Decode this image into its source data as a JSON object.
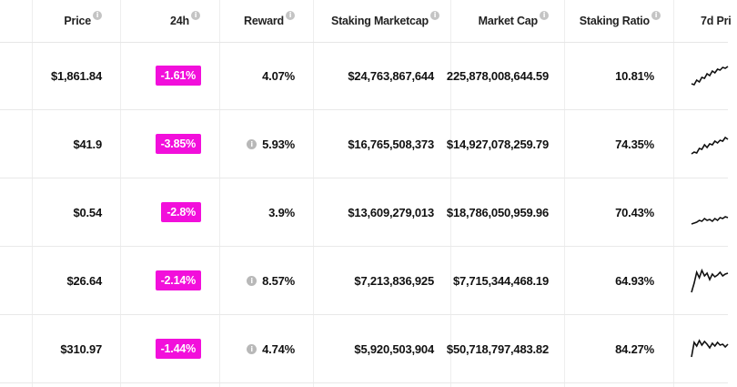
{
  "header": {
    "price": "Price",
    "change": "24h",
    "reward": "Reward",
    "staking_marketcap": "Staking Marketcap",
    "market_cap": "Market Cap",
    "staking_ratio": "Staking Ratio",
    "chart_7d": "7d Pri",
    "info_glyph": "i"
  },
  "rows": [
    {
      "price": "$1,861.84",
      "change": "-1.61%",
      "reward": "4.07%",
      "reward_info": false,
      "staking_marketcap": "$24,763,867,644",
      "market_cap": "225,878,008,644.59",
      "staking_ratio": "10.81%",
      "spark": [
        26,
        27,
        22,
        24,
        19,
        20,
        15,
        17,
        12,
        14,
        10,
        11,
        8,
        9,
        7
      ]
    },
    {
      "price": "$41.9",
      "change": "-3.85%",
      "reward": "5.93%",
      "reward_info": true,
      "staking_marketcap": "$16,765,508,373",
      "market_cap": "$14,927,078,259.79",
      "staking_ratio": "74.35%",
      "spark": [
        28,
        26,
        27,
        22,
        23,
        18,
        21,
        17,
        18,
        14,
        16,
        13,
        14,
        10,
        12
      ]
    },
    {
      "price": "$0.54",
      "change": "-2.8%",
      "reward": "3.9%",
      "reward_info": false,
      "staking_marketcap": "$13,609,279,013",
      "market_cap": "$18,786,050,959.96",
      "staking_ratio": "70.43%",
      "spark": [
        30,
        29,
        28,
        26,
        27,
        24,
        26,
        25,
        27,
        24,
        26,
        23,
        24,
        22,
        23
      ]
    },
    {
      "price": "$26.64",
      "change": "-2.14%",
      "reward": "8.57%",
      "reward_info": true,
      "staking_marketcap": "$7,213,836,925",
      "market_cap": "$7,715,344,468.19",
      "staking_ratio": "64.93%",
      "spark": [
        30,
        20,
        8,
        14,
        6,
        12,
        9,
        16,
        10,
        13,
        11,
        8,
        12,
        10,
        9
      ]
    },
    {
      "price": "$310.97",
      "change": "-1.44%",
      "reward": "4.74%",
      "reward_info": true,
      "staking_marketcap": "$5,920,503,904",
      "market_cap": "$50,718,797,483.82",
      "staking_ratio": "84.27%",
      "spark": [
        26,
        10,
        14,
        8,
        13,
        9,
        12,
        16,
        11,
        14,
        10,
        13,
        12,
        15,
        12
      ]
    }
  ],
  "colors": {
    "change_negative_bg": "#f20fdb",
    "sparkline": "#111111"
  }
}
